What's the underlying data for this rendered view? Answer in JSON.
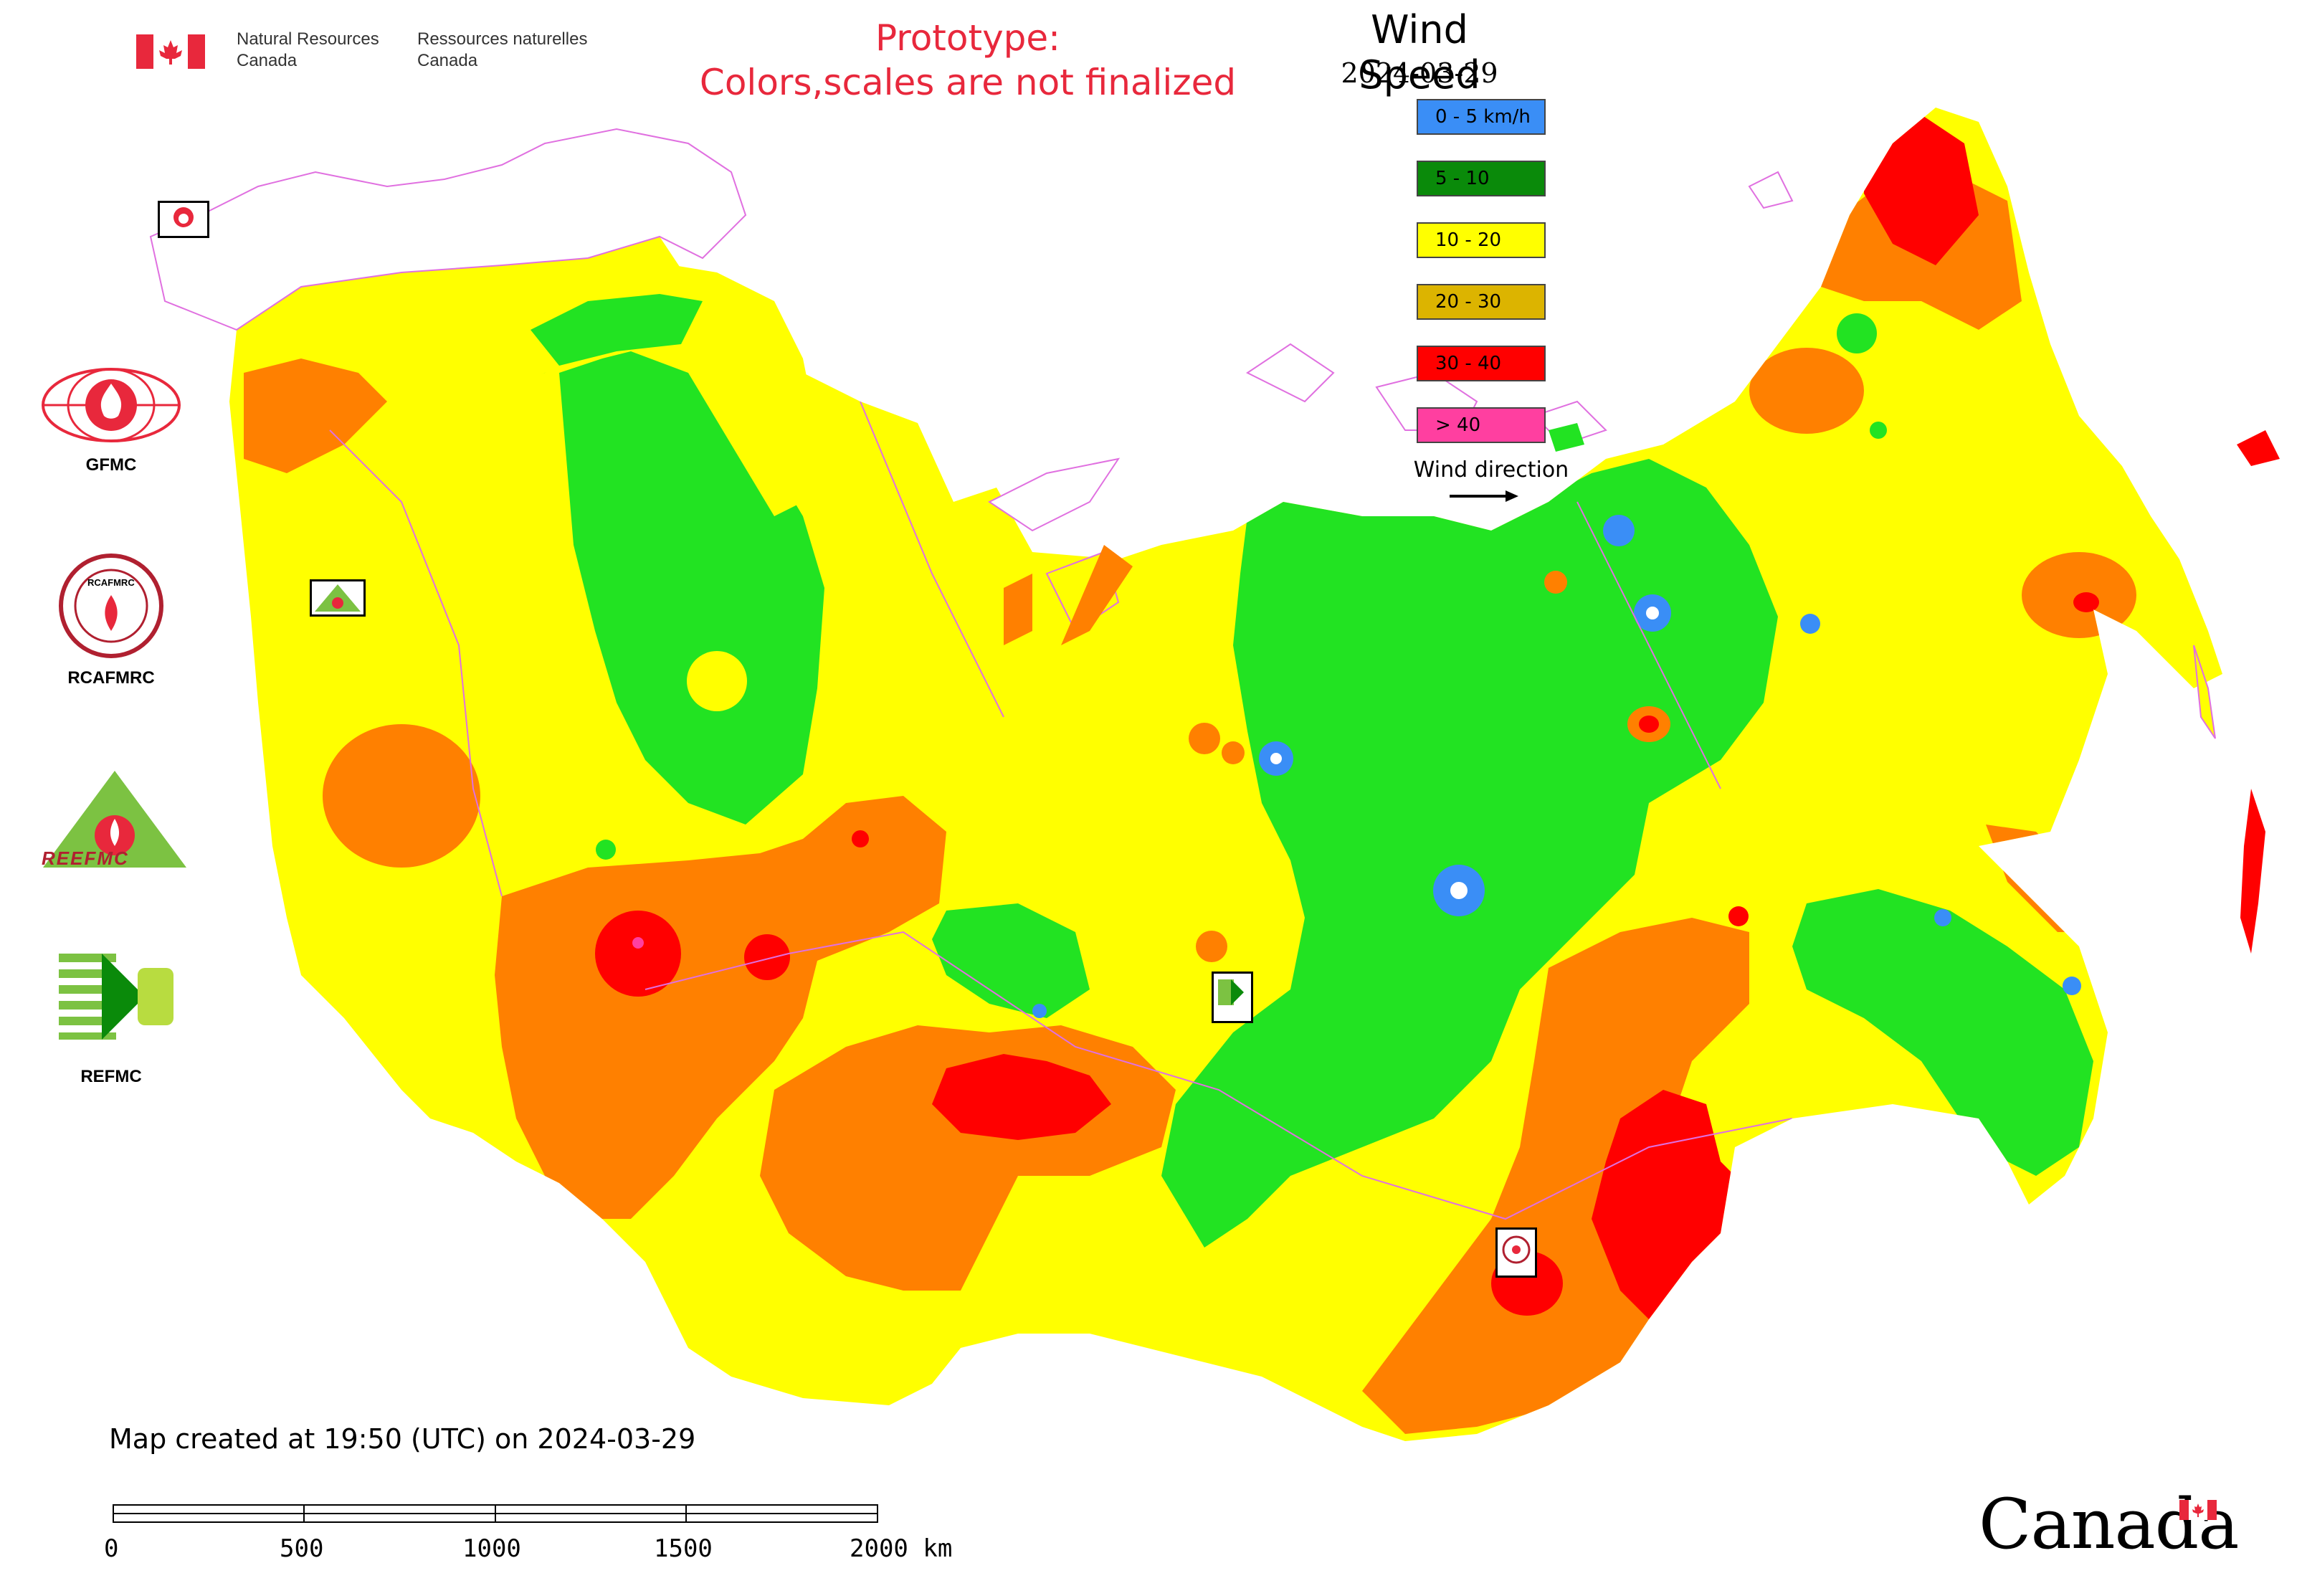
{
  "header": {
    "agency_en_line1": "Natural Resources",
    "agency_en_line2": "Canada",
    "agency_fr_line1": "Ressources naturelles",
    "agency_fr_line2": "Canada"
  },
  "notice": {
    "line1": "Prototype:",
    "line2": "Colors,scales are not finalized"
  },
  "legend": {
    "title": "Wind Speed",
    "date": "2024-03-29",
    "items": [
      {
        "label": "0 - 5 km/h",
        "color": "#3a8ef6"
      },
      {
        "label": "5 - 10",
        "color": "#0a8a0a"
      },
      {
        "label": "10 - 20",
        "color": "#ffff00"
      },
      {
        "label": "20 - 30",
        "color": "#dcb400"
      },
      {
        "label": "30 - 40",
        "color": "#ff0000"
      },
      {
        "label": "> 40",
        "color": "#ff3fa0"
      }
    ],
    "wind_direction_label": "Wind direction"
  },
  "map_colors": {
    "calm": "#3a8ef6",
    "light": "#22e322",
    "moderate": "#ffff00",
    "fresh": "#ff8000",
    "strong": "#ff0000",
    "gale": "#ff3fa0",
    "border": "#e070e0"
  },
  "centers": {
    "gfmc": "GFMC",
    "rcafmrc": "RCAFMRC",
    "reefmc": "REEFMC",
    "refmc": "REFMC",
    "rcafmrc_logo_text": "RCAFMRC",
    "reefmc_logo_text": "REEFMC",
    "refmc_logo_text": "REFMC"
  },
  "footer": {
    "created": "Map created at 19:50 (UTC) on 2024-03-29",
    "scale_labels": [
      "0",
      "500",
      "1000",
      "1500",
      "2000 km"
    ],
    "wordmark": "Canada"
  },
  "icons": [
    "canada-flag-icon",
    "fire-center-logo-icon",
    "wind-arrow-icon"
  ]
}
